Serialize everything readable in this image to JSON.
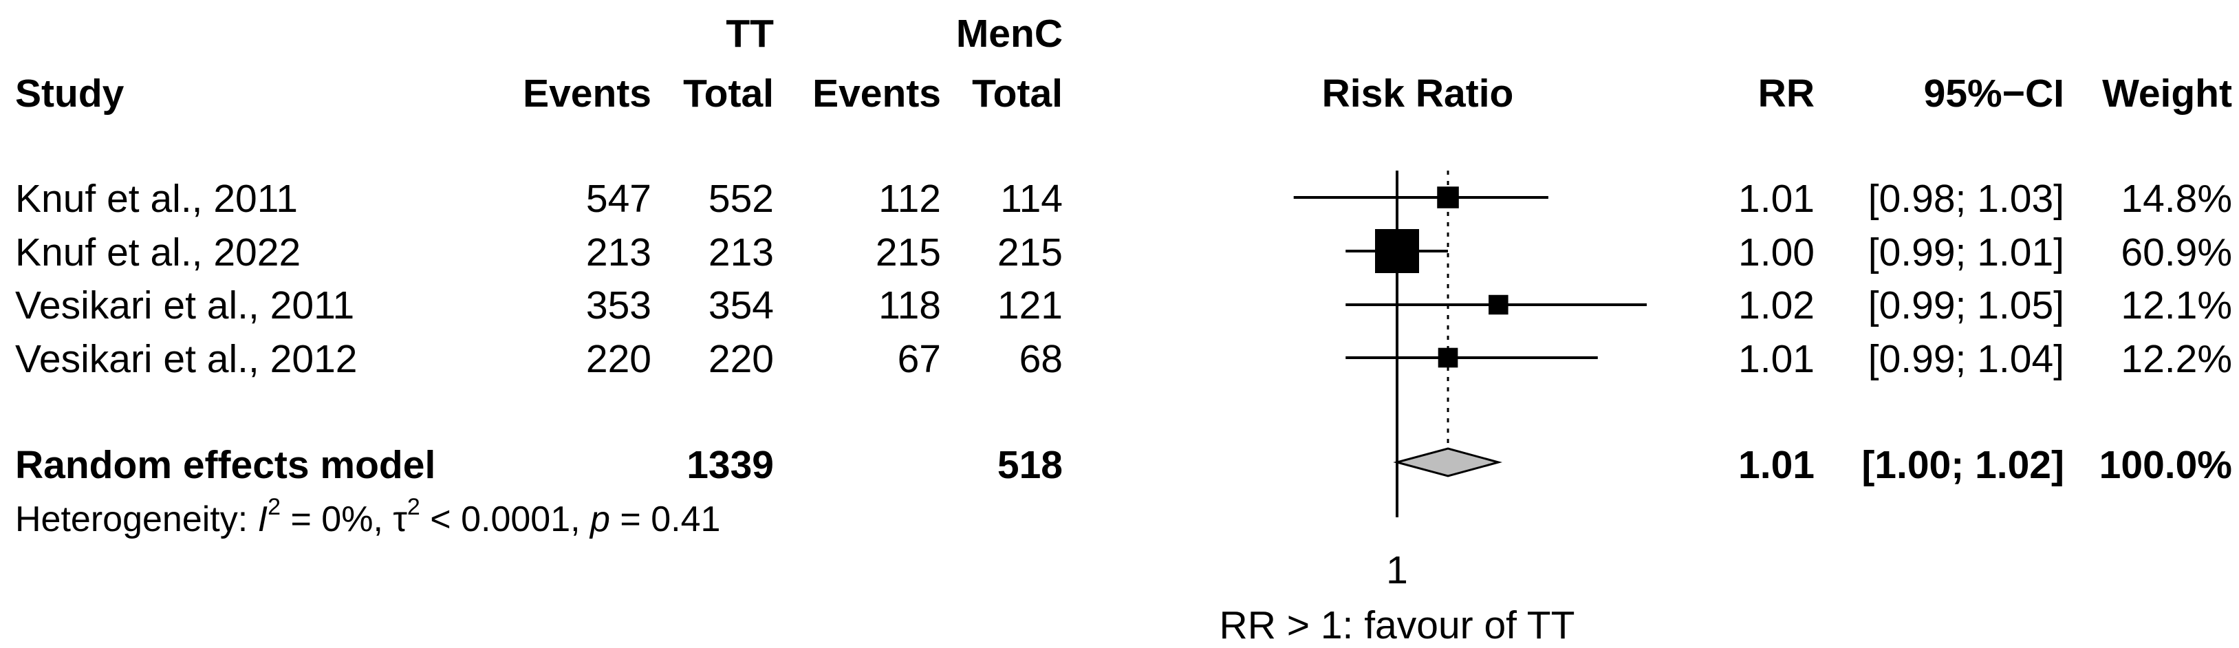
{
  "header": {
    "group_tt": "TT",
    "group_menc": "MenC",
    "study": "Study",
    "events_tt": "Events",
    "total_tt": "Total",
    "events_menc": "Events",
    "total_menc": "Total",
    "risk_ratio": "Risk Ratio",
    "rr": "RR",
    "ci": "95%−CI",
    "weight": "Weight"
  },
  "studies": [
    {
      "name": "Knuf et al., 2011",
      "tt_events": "547",
      "tt_total": "552",
      "menc_events": "112",
      "menc_total": "114",
      "rr_text": "1.01",
      "ci_text": "[0.98; 1.03]",
      "weight_text": "14.8%"
    },
    {
      "name": "Knuf et al., 2022",
      "tt_events": "213",
      "tt_total": "213",
      "menc_events": "215",
      "menc_total": "215",
      "rr_text": "1.00",
      "ci_text": "[0.99; 1.01]",
      "weight_text": "60.9%"
    },
    {
      "name": "Vesikari et al., 2011",
      "tt_events": "353",
      "tt_total": "354",
      "menc_events": "118",
      "menc_total": "121",
      "rr_text": "1.02",
      "ci_text": "[0.99; 1.05]",
      "weight_text": "12.1%"
    },
    {
      "name": "Vesikari et al., 2012",
      "tt_events": "220",
      "tt_total": "220",
      "menc_events": "67",
      "menc_total": "68",
      "rr_text": "1.01",
      "ci_text": "[0.99; 1.04]",
      "weight_text": "12.2%"
    }
  ],
  "pooled": {
    "label": "Random effects model",
    "tt_total": "1339",
    "menc_total": "518",
    "rr_text": "1.01",
    "ci_text": "[1.00; 1.02]",
    "weight_text": "100.0%"
  },
  "heterogeneity": {
    "prefix": "Heterogeneity: ",
    "i2_symbol": "I",
    "i2_value": " = 0%, ",
    "tau2_symbol": "τ",
    "tau2_value": " < 0.0001, ",
    "p_symbol": "p",
    "p_value": " = 0.41",
    "sup": "2"
  },
  "axis": {
    "tick_label": "1",
    "xlabel": "RR > 1: favour of TT"
  },
  "colors": {
    "study_marker": "#000000",
    "diamond_fill": "#bebebe",
    "diamond_stroke": "#000000"
  },
  "chart_data": {
    "type": "forest",
    "measure": "Risk Ratio",
    "xlabel": "RR > 1: favour of TT",
    "reference_line": 1,
    "pooled_dotted_line": 1.01,
    "x_ticks": [
      1
    ],
    "studies": [
      {
        "study": "Knuf et al., 2011",
        "rr": 1.01,
        "ci_lower": 0.98,
        "ci_upper": 1.03,
        "weight": 14.8
      },
      {
        "study": "Knuf et al., 2022",
        "rr": 1.0,
        "ci_lower": 0.99,
        "ci_upper": 1.01,
        "weight": 60.9
      },
      {
        "study": "Vesikari et al., 2011",
        "rr": 1.02,
        "ci_lower": 0.99,
        "ci_upper": 1.05,
        "weight": 12.1
      },
      {
        "study": "Vesikari et al., 2012",
        "rr": 1.01,
        "ci_lower": 0.99,
        "ci_upper": 1.04,
        "weight": 12.2
      }
    ],
    "pooled": {
      "label": "Random effects model",
      "rr": 1.01,
      "ci_lower": 1.0,
      "ci_upper": 1.02,
      "weight": 100.0
    }
  }
}
